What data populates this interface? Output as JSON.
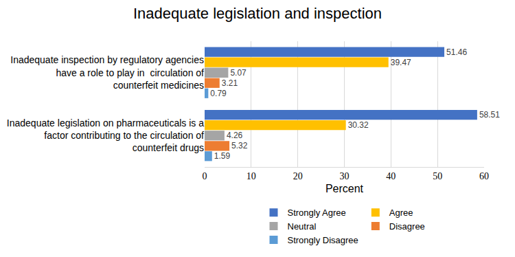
{
  "chart_data": {
    "type": "bar",
    "title": "Inadequate legislation and inspection",
    "orientation": "horizontal",
    "categories": [
      "Inadequate inspection by regulatory agencies have a role to play in  circulation of counterfeit medicines",
      "Inadequate legislation on pharmaceuticals is a factor contributing to the circulation of counterfeit drugs"
    ],
    "series": [
      {
        "name": "Strongly Agree",
        "color": "#4472c4",
        "values": [
          51.46,
          58.51
        ]
      },
      {
        "name": "Agree",
        "color": "#ffc000",
        "values": [
          39.47,
          30.32
        ]
      },
      {
        "name": "Neutral",
        "color": "#a5a5a5",
        "values": [
          5.07,
          4.26
        ]
      },
      {
        "name": "Disagree",
        "color": "#ed7d31",
        "values": [
          3.21,
          5.32
        ]
      },
      {
        "name": "Strongly Disagree",
        "color": "#5b9bd5",
        "values": [
          0.79,
          1.59
        ]
      }
    ],
    "xlabel": "Percent",
    "xlim": [
      0,
      60
    ],
    "xticks": [
      0,
      10,
      20,
      30,
      40,
      50,
      60
    ],
    "grid": true,
    "data_labels": true,
    "legend": "bottom"
  }
}
